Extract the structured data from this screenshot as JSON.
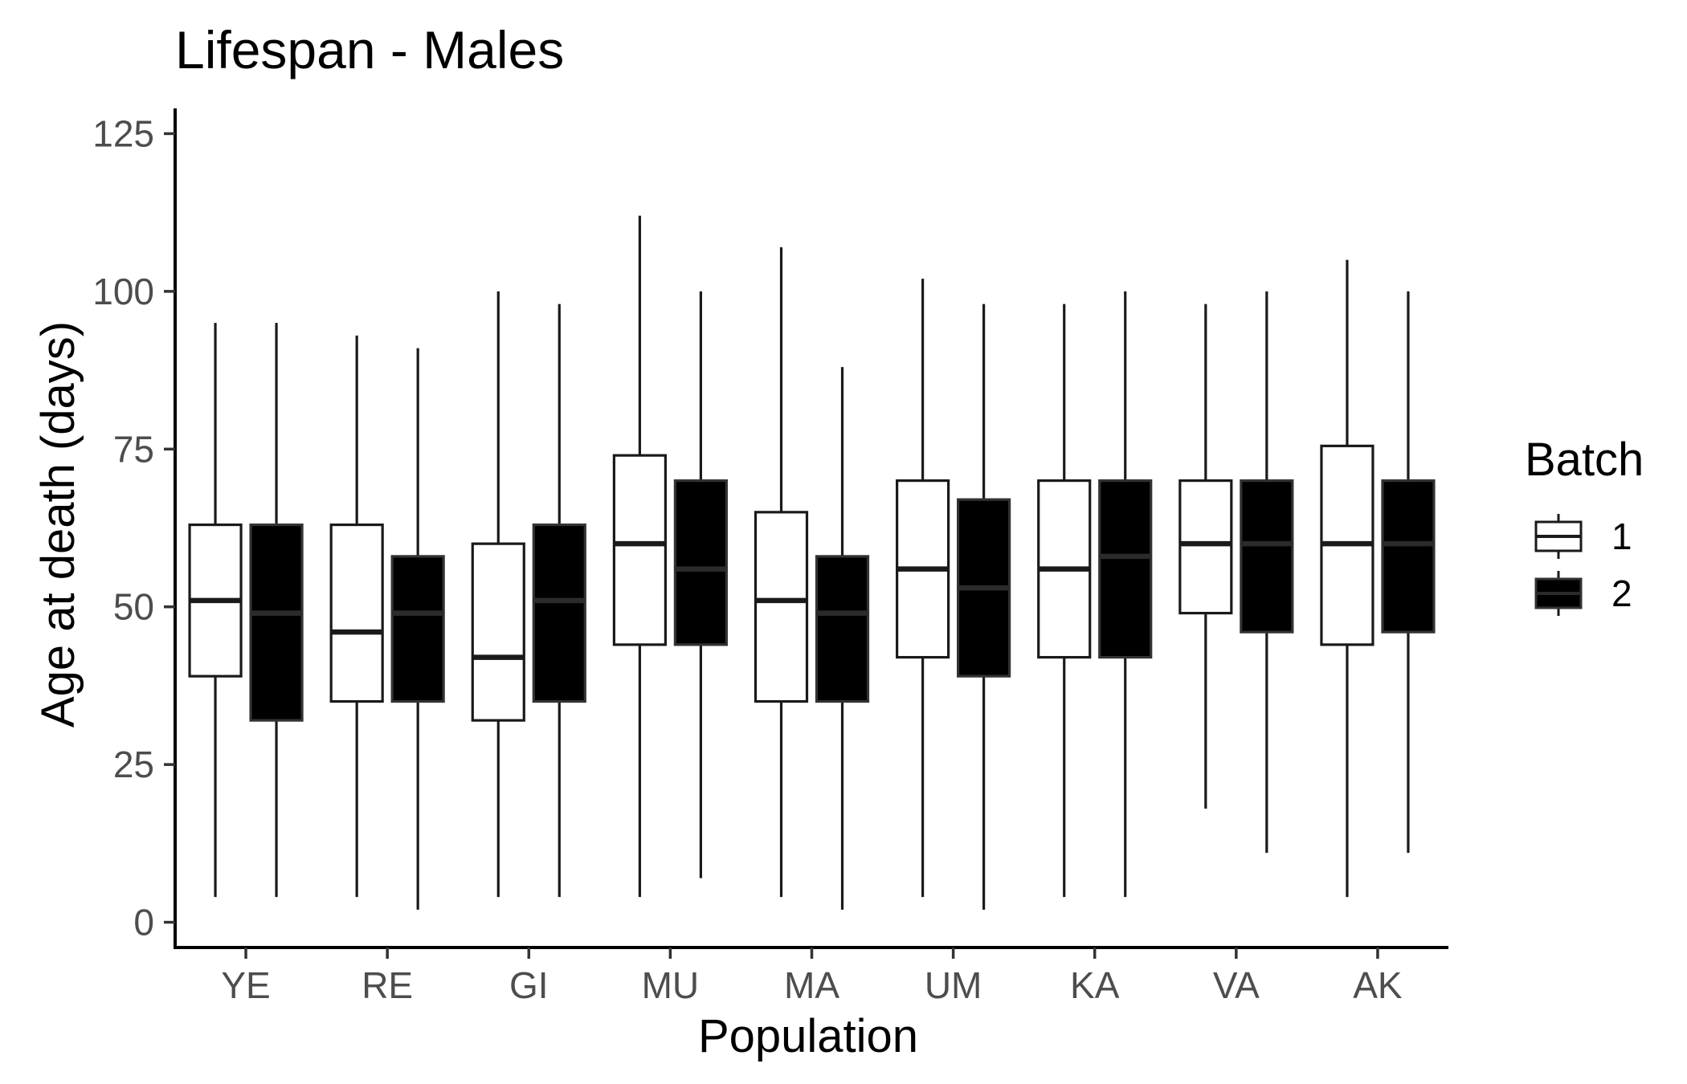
{
  "chart_data": {
    "type": "boxplot",
    "title": "Lifespan - Males",
    "xlabel": "Population",
    "ylabel": "Age at death (days)",
    "ylim": [
      -4,
      129
    ],
    "yticks": [
      0,
      25,
      50,
      75,
      100,
      125
    ],
    "ytick_labels": [
      "0",
      "25",
      "50",
      "75",
      "100",
      "125"
    ],
    "grid": false,
    "legend": {
      "title": "Batch",
      "position": "right"
    },
    "categories": [
      "YE",
      "RE",
      "GI",
      "MU",
      "MA",
      "UM",
      "KA",
      "VA",
      "AK"
    ],
    "series": [
      {
        "name": "1",
        "fill": "#ffffff",
        "stroke": "#1a1a1a",
        "median_color": "#1a1a1a",
        "boxes": [
          {
            "min": 4,
            "q1": 39,
            "median": 51,
            "q3": 63,
            "max": 95
          },
          {
            "min": 4,
            "q1": 35,
            "median": 46,
            "q3": 63,
            "max": 93
          },
          {
            "min": 4,
            "q1": 32,
            "median": 42,
            "q3": 60,
            "max": 100
          },
          {
            "min": 4,
            "q1": 44,
            "median": 60,
            "q3": 74,
            "max": 112
          },
          {
            "min": 4,
            "q1": 35,
            "median": 51,
            "q3": 65,
            "max": 107
          },
          {
            "min": 4,
            "q1": 42,
            "median": 56,
            "q3": 70,
            "max": 102
          },
          {
            "min": 4,
            "q1": 42,
            "median": 56,
            "q3": 70,
            "max": 98
          },
          {
            "min": 18,
            "q1": 49,
            "median": 60,
            "q3": 70,
            "max": 98
          },
          {
            "min": 4,
            "q1": 44,
            "median": 60,
            "q3": 75.5,
            "max": 105
          }
        ]
      },
      {
        "name": "2",
        "fill": "#000000",
        "stroke": "#333333",
        "median_color": "#2b2b2b",
        "boxes": [
          {
            "min": 4,
            "q1": 32,
            "median": 49,
            "q3": 63,
            "max": 95
          },
          {
            "min": 2,
            "q1": 35,
            "median": 49,
            "q3": 58,
            "max": 91
          },
          {
            "min": 4,
            "q1": 35,
            "median": 51,
            "q3": 63,
            "max": 98
          },
          {
            "min": 7,
            "q1": 44,
            "median": 56,
            "q3": 70,
            "max": 100
          },
          {
            "min": 2,
            "q1": 35,
            "median": 49,
            "q3": 58,
            "max": 88
          },
          {
            "min": 2,
            "q1": 39,
            "median": 53,
            "q3": 67,
            "max": 98
          },
          {
            "min": 4,
            "q1": 42,
            "median": 58,
            "q3": 70,
            "max": 100
          },
          {
            "min": 11,
            "q1": 46,
            "median": 60,
            "q3": 70,
            "max": 100
          },
          {
            "min": 11,
            "q1": 46,
            "median": 60,
            "q3": 70,
            "max": 100
          }
        ]
      }
    ]
  }
}
